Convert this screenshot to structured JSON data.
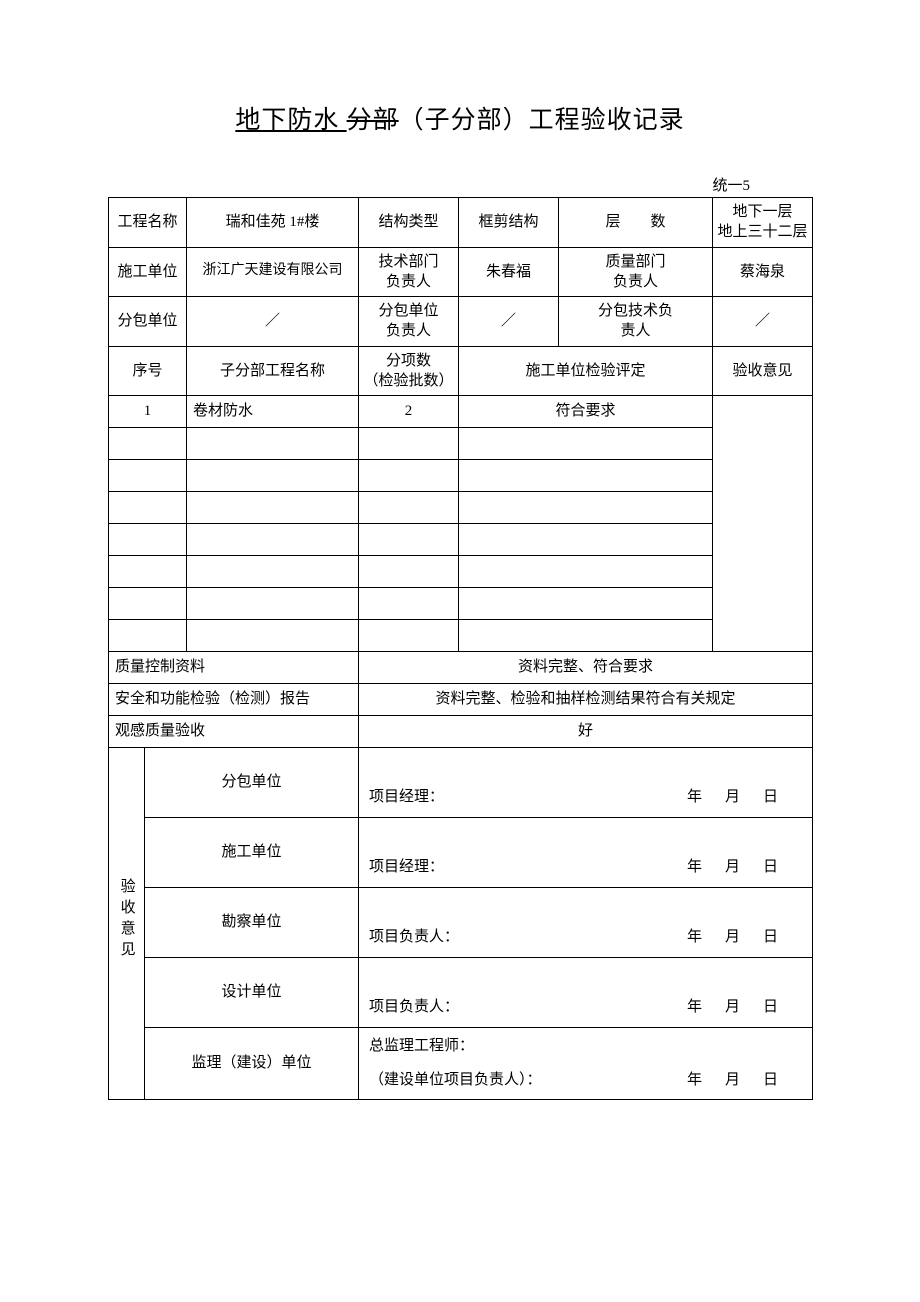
{
  "title": {
    "part1_underline": " 地下防水 ",
    "part2_strike": "分部",
    "part3": "（子分部）工程验收记录"
  },
  "form_code": "统一5",
  "header": {
    "project_name_label": "工程名称",
    "project_name_value": "瑞和佳苑 1#楼",
    "structure_type_label": "结构类型",
    "structure_type_value": "框剪结构",
    "floors_label": "层　　数",
    "floors_value_line1": "地下一层",
    "floors_value_line2": "地上三十二层",
    "contractor_label": "施工单位",
    "contractor_value": "浙江广天建设有限公司",
    "tech_leader_label_l1": "技术部门",
    "tech_leader_label_l2": "负责人",
    "tech_leader_value": "朱春福",
    "quality_leader_label_l1": "质量部门",
    "quality_leader_label_l2": "负责人",
    "quality_leader_value": "蔡海泉",
    "sub_unit_label": "分包单位",
    "sub_unit_value": "／",
    "sub_unit_leader_label_l1": "分包单位",
    "sub_unit_leader_label_l2": "负责人",
    "sub_unit_leader_value": "／",
    "sub_tech_leader_label_l1": "分包技术负",
    "sub_tech_leader_label_l2": "责人",
    "sub_tech_leader_value": "／"
  },
  "columns": {
    "seq": "序号",
    "sub_name": "子分部工程名称",
    "count_l1": "分项数",
    "count_l2": "（检验批数）",
    "eval": "施工单位检验评定",
    "opinion": "验收意见"
  },
  "rows": [
    {
      "seq": "1",
      "name": "卷材防水",
      "count": "2",
      "eval": "符合要求"
    }
  ],
  "summary": {
    "qc_label": "质量控制资料",
    "qc_value": "资料完整、符合要求",
    "safety_label": "安全和功能检验（检测）报告",
    "safety_value": "资料完整、检验和抽样检测结果符合有关规定",
    "visual_label": "观感质量验收",
    "visual_value": "好"
  },
  "opinion_block": {
    "side_label": "验收意见",
    "rows": [
      {
        "unit": "分包单位",
        "role": "项目经理："
      },
      {
        "unit": "施工单位",
        "role": "项目经理："
      },
      {
        "unit": "勘察单位",
        "role": "项目负责人："
      },
      {
        "unit": "设计单位",
        "role": "项目负责人："
      }
    ],
    "last": {
      "unit": "监理（建设）单位",
      "role1": "总监理工程师：",
      "role2": "（建设单位项目负责人）："
    },
    "ymd": "年　月　日"
  }
}
